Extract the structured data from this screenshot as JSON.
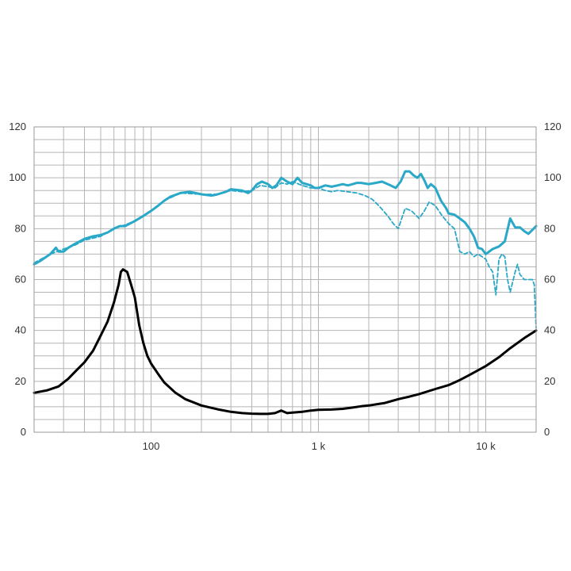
{
  "chart_data": {
    "type": "line",
    "x_scale": "log",
    "xlim": [
      20,
      20000
    ],
    "ylim": [
      0,
      120
    ],
    "y_ticks": [
      "0",
      "20",
      "40",
      "60",
      "80",
      "100",
      "120"
    ],
    "x_ticks": [
      {
        "value": 100,
        "label": "100"
      },
      {
        "value": 1000,
        "label": "1 k"
      },
      {
        "value": 10000,
        "label": "10 k"
      }
    ],
    "grid": true,
    "colors": {
      "spl": "#2aa8c8",
      "impedance": "#000000",
      "grid": "#b4b4b4"
    },
    "series": [
      {
        "key": "spl_on_axis",
        "style": "solid",
        "color": "#2aa8c8",
        "points": [
          [
            20,
            66
          ],
          [
            22,
            67.5
          ],
          [
            25,
            70
          ],
          [
            27,
            72.5
          ],
          [
            28,
            71
          ],
          [
            30,
            71
          ],
          [
            32,
            72.5
          ],
          [
            35,
            74
          ],
          [
            40,
            76
          ],
          [
            45,
            77
          ],
          [
            50,
            77.5
          ],
          [
            55,
            78.5
          ],
          [
            60,
            80
          ],
          [
            65,
            81
          ],
          [
            70,
            81
          ],
          [
            80,
            83
          ],
          [
            90,
            85
          ],
          [
            100,
            87
          ],
          [
            110,
            89
          ],
          [
            120,
            91
          ],
          [
            130,
            92.5
          ],
          [
            150,
            94
          ],
          [
            170,
            94.5
          ],
          [
            200,
            93.5
          ],
          [
            230,
            93
          ],
          [
            250,
            93.5
          ],
          [
            280,
            94.5
          ],
          [
            300,
            95.5
          ],
          [
            350,
            95
          ],
          [
            380,
            94
          ],
          [
            400,
            95
          ],
          [
            430,
            97.5
          ],
          [
            460,
            98.5
          ],
          [
            500,
            97.5
          ],
          [
            530,
            96
          ],
          [
            560,
            97
          ],
          [
            600,
            100
          ],
          [
            650,
            98.5
          ],
          [
            700,
            97.5
          ],
          [
            750,
            100
          ],
          [
            800,
            98
          ],
          [
            850,
            97.5
          ],
          [
            900,
            97
          ],
          [
            950,
            96
          ],
          [
            1000,
            96
          ],
          [
            1100,
            97
          ],
          [
            1200,
            96.5
          ],
          [
            1300,
            97
          ],
          [
            1400,
            97.5
          ],
          [
            1500,
            97
          ],
          [
            1600,
            97.5
          ],
          [
            1700,
            98
          ],
          [
            1800,
            98
          ],
          [
            2000,
            97.5
          ],
          [
            2200,
            98
          ],
          [
            2400,
            98.5
          ],
          [
            2700,
            97
          ],
          [
            2900,
            96
          ],
          [
            3100,
            98.5
          ],
          [
            3300,
            102.5
          ],
          [
            3500,
            102.5
          ],
          [
            3700,
            101
          ],
          [
            3900,
            100
          ],
          [
            4100,
            101.5
          ],
          [
            4300,
            99
          ],
          [
            4500,
            96
          ],
          [
            4700,
            97.5
          ],
          [
            5000,
            96
          ],
          [
            5400,
            91
          ],
          [
            5800,
            88
          ],
          [
            6000,
            86
          ],
          [
            6500,
            85.5
          ],
          [
            7000,
            84
          ],
          [
            7500,
            82.5
          ],
          [
            8000,
            80
          ],
          [
            8500,
            77
          ],
          [
            9000,
            72.5
          ],
          [
            9500,
            72
          ],
          [
            10000,
            70
          ],
          [
            11000,
            72
          ],
          [
            12000,
            73
          ],
          [
            13000,
            75
          ],
          [
            14000,
            84
          ],
          [
            15000,
            80.5
          ],
          [
            16000,
            80.5
          ],
          [
            17000,
            79
          ],
          [
            18000,
            78
          ],
          [
            19000,
            79.5
          ],
          [
            20000,
            81
          ]
        ]
      },
      {
        "key": "spl_off_axis",
        "style": "dashed",
        "color": "#2aa8c8",
        "points": [
          [
            20,
            66.5
          ],
          [
            25,
            70
          ],
          [
            30,
            72
          ],
          [
            35,
            73.5
          ],
          [
            40,
            75.5
          ],
          [
            50,
            77
          ],
          [
            60,
            80
          ],
          [
            70,
            81.5
          ],
          [
            80,
            83
          ],
          [
            100,
            87
          ],
          [
            120,
            91
          ],
          [
            150,
            94
          ],
          [
            200,
            93.5
          ],
          [
            250,
            93.5
          ],
          [
            300,
            95
          ],
          [
            350,
            94.5
          ],
          [
            400,
            95
          ],
          [
            450,
            97
          ],
          [
            500,
            96.5
          ],
          [
            550,
            96
          ],
          [
            600,
            98
          ],
          [
            650,
            97.5
          ],
          [
            700,
            98.5
          ],
          [
            800,
            97
          ],
          [
            900,
            96
          ],
          [
            1000,
            96
          ],
          [
            1100,
            95
          ],
          [
            1200,
            94.5
          ],
          [
            1300,
            95
          ],
          [
            1500,
            94.5
          ],
          [
            1700,
            94
          ],
          [
            1900,
            93
          ],
          [
            2100,
            91.5
          ],
          [
            2300,
            89
          ],
          [
            2600,
            85
          ],
          [
            2800,
            82
          ],
          [
            3000,
            80
          ],
          [
            3300,
            88
          ],
          [
            3600,
            87
          ],
          [
            4000,
            84
          ],
          [
            4300,
            87
          ],
          [
            4600,
            90.5
          ],
          [
            5000,
            89
          ],
          [
            5500,
            85
          ],
          [
            6000,
            82
          ],
          [
            6500,
            80
          ],
          [
            7000,
            71
          ],
          [
            7500,
            70
          ],
          [
            8000,
            71
          ],
          [
            8500,
            69
          ],
          [
            9000,
            70
          ],
          [
            9500,
            69
          ],
          [
            10000,
            68
          ],
          [
            10500,
            65
          ],
          [
            11000,
            63
          ],
          [
            11500,
            54
          ],
          [
            12000,
            68
          ],
          [
            12500,
            70
          ],
          [
            13000,
            69
          ],
          [
            13500,
            60
          ],
          [
            14000,
            55
          ],
          [
            15000,
            63
          ],
          [
            15500,
            66
          ],
          [
            16000,
            62
          ],
          [
            17000,
            60
          ],
          [
            18000,
            60
          ],
          [
            19000,
            60
          ],
          [
            19500,
            58
          ],
          [
            20000,
            41
          ]
        ]
      },
      {
        "key": "impedance",
        "style": "solid",
        "color": "#000000",
        "points": [
          [
            20,
            15.5
          ],
          [
            24,
            16.5
          ],
          [
            28,
            18
          ],
          [
            32,
            21
          ],
          [
            36,
            24.5
          ],
          [
            40,
            27.5
          ],
          [
            45,
            32
          ],
          [
            50,
            38
          ],
          [
            55,
            43.5
          ],
          [
            60,
            51
          ],
          [
            64,
            58
          ],
          [
            66,
            63
          ],
          [
            68,
            64
          ],
          [
            72,
            63
          ],
          [
            76,
            58
          ],
          [
            80,
            53
          ],
          [
            85,
            42
          ],
          [
            90,
            35
          ],
          [
            95,
            30
          ],
          [
            100,
            27
          ],
          [
            110,
            23
          ],
          [
            120,
            19.5
          ],
          [
            140,
            15.5
          ],
          [
            160,
            13
          ],
          [
            200,
            10.5
          ],
          [
            250,
            9
          ],
          [
            300,
            8
          ],
          [
            350,
            7.5
          ],
          [
            400,
            7.3
          ],
          [
            450,
            7.2
          ],
          [
            500,
            7.2
          ],
          [
            550,
            7.5
          ],
          [
            600,
            8.5
          ],
          [
            650,
            7.5
          ],
          [
            700,
            7.7
          ],
          [
            800,
            8
          ],
          [
            900,
            8.5
          ],
          [
            1000,
            8.8
          ],
          [
            1200,
            8.9
          ],
          [
            1400,
            9.2
          ],
          [
            1600,
            9.7
          ],
          [
            1800,
            10.2
          ],
          [
            2000,
            10.5
          ],
          [
            2500,
            11.5
          ],
          [
            3000,
            13
          ],
          [
            3500,
            14
          ],
          [
            4000,
            15
          ],
          [
            5000,
            17
          ],
          [
            6000,
            18.5
          ],
          [
            7000,
            20.5
          ],
          [
            8000,
            22.5
          ],
          [
            10000,
            26
          ],
          [
            12000,
            29.5
          ],
          [
            14000,
            33
          ],
          [
            17000,
            37
          ],
          [
            20000,
            40
          ]
        ]
      }
    ]
  }
}
